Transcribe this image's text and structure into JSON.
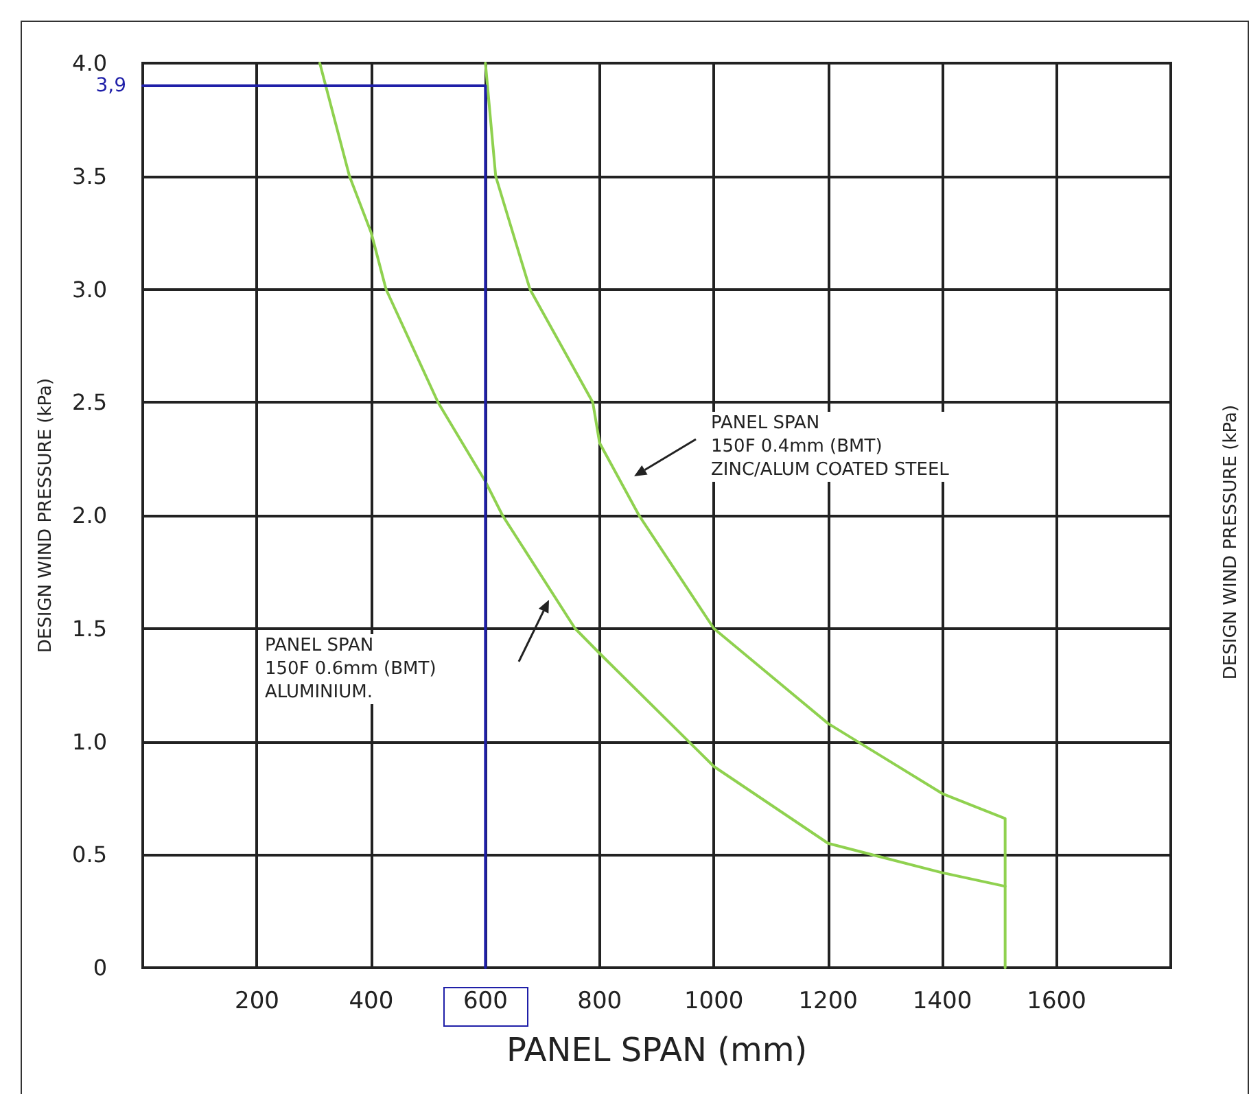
{
  "chart_data": {
    "type": "line",
    "xlabel": "PANEL SPAN (mm)",
    "ylabel": "DESIGN WIND PRESSURE (kPa)",
    "xlim": [
      0,
      1800
    ],
    "xticks": [
      200,
      400,
      600,
      800,
      1000,
      1200,
      1400,
      1600
    ],
    "ylim": [
      0,
      4
    ],
    "yticks": [
      {
        "value": 0,
        "label": "0"
      },
      {
        "value": 0.5,
        "label": "0.5"
      },
      {
        "value": 1,
        "label": "1.0"
      },
      {
        "value": 1.5,
        "label": "1.5"
      },
      {
        "value": 2,
        "label": "2.0"
      },
      {
        "value": 2.5,
        "label": "2.5"
      },
      {
        "value": 3,
        "label": "3.0"
      },
      {
        "value": 3.5,
        "label": "3.5"
      },
      {
        "value": 4,
        "label": "4.0"
      }
    ],
    "grid": true,
    "marker": "none",
    "line_style": "solid",
    "series": [
      {
        "color": "#8fd14f",
        "x": [
          600,
          618,
          678,
          788,
          800,
          869,
          1000,
          1200,
          1400,
          1510,
          1510
        ],
        "values": [
          4.0,
          3.5,
          3.0,
          2.5,
          2.32,
          2.0,
          1.5,
          1.08,
          0.77,
          0.66,
          0
        ]
      },
      {
        "color": "#8fd14f",
        "x": [
          310,
          362,
          400,
          426,
          517,
          600,
          630,
          757,
          800,
          1000,
          1200,
          1400,
          1510
        ],
        "values": [
          4.0,
          3.5,
          3.25,
          3.0,
          2.5,
          2.15,
          2.0,
          1.5,
          1.39,
          0.89,
          0.55,
          0.42,
          0.36
        ]
      },
      {
        "color": "#1f1fa8",
        "x": [
          0,
          600,
          600
        ],
        "values": [
          3.9,
          3.9,
          0
        ]
      }
    ],
    "annotations": [
      "PANEL SPAN\n150F 0.4mm (BMT)\nZINC/ALUM COATED STEEL",
      "PANEL SPAN\n150F 0.6mm (BMT)\nALUMINIUM.",
      {
        "text": "3,9",
        "x": 0,
        "y": 3.9
      },
      "DESIGN WIND PRESSURE (kPa)"
    ]
  }
}
